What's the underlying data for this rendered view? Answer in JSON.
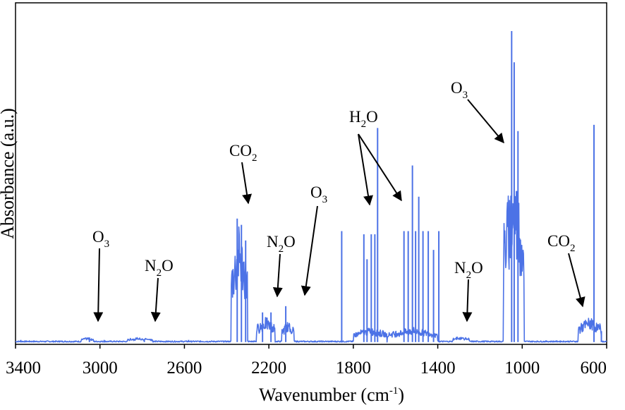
{
  "chart_data": {
    "type": "line",
    "xlabel": "Wavenumber (cm",
    "xlabel_sup": "-1",
    "xlabel_close": ")",
    "ylabel": "Absorbance (a.u.)",
    "xlim": [
      3400,
      600
    ],
    "x_reversed": true,
    "ylim": [
      0,
      1
    ],
    "x_ticks": [
      3400,
      3000,
      2600,
      2200,
      1800,
      1400,
      1000,
      600
    ],
    "x_tick_labels": [
      "3400",
      "3000",
      "2600",
      "2200",
      "1800",
      "1400",
      "1000",
      "600"
    ],
    "grid": false,
    "y_tick_labels_shown": false,
    "series_color": "#4c72e6",
    "baseline": 0.005,
    "bands": [
      {
        "center": 3060,
        "halfwidth": 30,
        "height": 0.012
      },
      {
        "center": 2810,
        "halfwidth": 60,
        "height": 0.012
      },
      {
        "center": 2340,
        "halfwidth": 40,
        "height": 0.38
      },
      {
        "center": 2215,
        "halfwidth": 45,
        "height": 0.08
      },
      {
        "center": 2110,
        "halfwidth": 30,
        "height": 0.065
      },
      {
        "center": 1720,
        "halfwidth": 80,
        "height": 0.045
      },
      {
        "center": 1520,
        "halfwidth": 120,
        "height": 0.045
      },
      {
        "center": 1290,
        "halfwidth": 40,
        "height": 0.015
      },
      {
        "center": 1040,
        "halfwidth": 50,
        "height": 0.58
      },
      {
        "center": 680,
        "halfwidth": 55,
        "height": 0.08
      }
    ],
    "peaks": [
      {
        "x": 3375,
        "y": 0.012
      },
      {
        "x": 3190,
        "y": 0.01
      },
      {
        "x": 3050,
        "y": 0.02
      },
      {
        "x": 2980,
        "y": 0.012
      },
      {
        "x": 2790,
        "y": 0.015
      },
      {
        "x": 2580,
        "y": 0.012
      },
      {
        "x": 2350,
        "y": 0.4
      },
      {
        "x": 2330,
        "y": 0.38
      },
      {
        "x": 2310,
        "y": 0.33
      },
      {
        "x": 2230,
        "y": 0.1
      },
      {
        "x": 2190,
        "y": 0.1
      },
      {
        "x": 2120,
        "y": 0.12
      },
      {
        "x": 1855,
        "y": 0.36
      },
      {
        "x": 1750,
        "y": 0.35
      },
      {
        "x": 1735,
        "y": 0.27
      },
      {
        "x": 1715,
        "y": 0.35
      },
      {
        "x": 1698,
        "y": 0.35
      },
      {
        "x": 1685,
        "y": 0.69
      },
      {
        "x": 1560,
        "y": 0.36
      },
      {
        "x": 1540,
        "y": 0.36
      },
      {
        "x": 1520,
        "y": 0.57
      },
      {
        "x": 1505,
        "y": 0.36
      },
      {
        "x": 1490,
        "y": 0.47
      },
      {
        "x": 1470,
        "y": 0.36
      },
      {
        "x": 1445,
        "y": 0.36
      },
      {
        "x": 1420,
        "y": 0.3
      },
      {
        "x": 1395,
        "y": 0.36
      },
      {
        "x": 1050,
        "y": 1.0
      },
      {
        "x": 1038,
        "y": 0.9
      },
      {
        "x": 1020,
        "y": 0.68
      },
      {
        "x": 660,
        "y": 0.7
      },
      {
        "x": 625,
        "y": 0.04
      }
    ],
    "annotations": [
      {
        "base": "O",
        "sub": "3"
      },
      {
        "base": "N",
        "sub": "2",
        "rest": "O"
      },
      {
        "base": "CO",
        "sub": "2"
      },
      {
        "base": "N",
        "sub": "2",
        "rest": "O"
      },
      {
        "base": "O",
        "sub": "3"
      },
      {
        "base": "H",
        "sub": "2",
        "rest": "O"
      },
      {
        "base": "N",
        "sub": "2",
        "rest": "O"
      },
      {
        "base": "O",
        "sub": "3"
      },
      {
        "base": "CO",
        "sub": "2"
      }
    ]
  }
}
